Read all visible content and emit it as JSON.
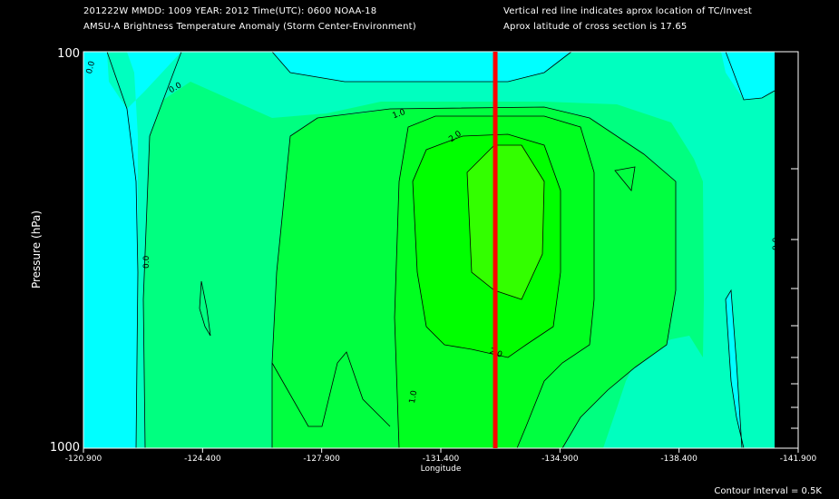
{
  "header": {
    "line1": "201222W  MMDD: 1009 YEAR: 2012 Time(UTC): 0600 NOAA-18",
    "line2": "AMSU-A Brightness Temperature Anomaly (Storm Center-Environment)",
    "right1": "Vertical red line indicates aprox location of TC/Invest",
    "right2": "Aprox latitude of cross section is 17.65"
  },
  "footer": {
    "contour_interval": "Contour Interval = 0.5K"
  },
  "colors": {
    "cyan": "#00ffff",
    "aqua_green": "#00ffbf",
    "light_green": "#00ff80",
    "mid_green": "#00ff40",
    "bright_green": "#00ff00",
    "tc_line": "#ff0000",
    "background": "#000000"
  },
  "chart_data": {
    "type": "heatmap",
    "subtype": "filled-contour cross section",
    "title": "AMSU-A Brightness Temperature Anomaly (Storm Center-Environment)",
    "xlabel": "Longitude",
    "ylabel": "Pressure (hPa)",
    "x_ticks": [
      "-120.900",
      "-124.400",
      "-127.900",
      "-131.400",
      "-134.900",
      "-138.400",
      "-141.900"
    ],
    "x_tick_values": [
      -120.9,
      -124.4,
      -127.9,
      -131.4,
      -134.9,
      -138.4,
      -141.9
    ],
    "xlim": [
      -120.9,
      -141.9
    ],
    "y_ticks": [
      "100",
      "1000"
    ],
    "ylim": [
      1000,
      100
    ],
    "y_scale": "log",
    "tc_longitude": -133.0,
    "contour_interval_K": 0.5,
    "contour_labels": [
      "0.0",
      "0.0",
      "0.0",
      "0.0",
      "1.0",
      "1.0",
      "2.0",
      "2.0"
    ],
    "levels": [
      {
        "range": "< 0.0",
        "color": "#00ffff"
      },
      {
        "range": "0.0 - 0.5",
        "color": "#00ffbf"
      },
      {
        "range": "0.5 - 1.0",
        "color": "#00ff80"
      },
      {
        "range": "1.0 - 1.5",
        "color": "#00ff40"
      },
      {
        "range": "1.5 - 2.0",
        "color": "#00ff20"
      },
      {
        "range": "> 2.0",
        "color": "#00ff00"
      }
    ],
    "grid": false
  }
}
